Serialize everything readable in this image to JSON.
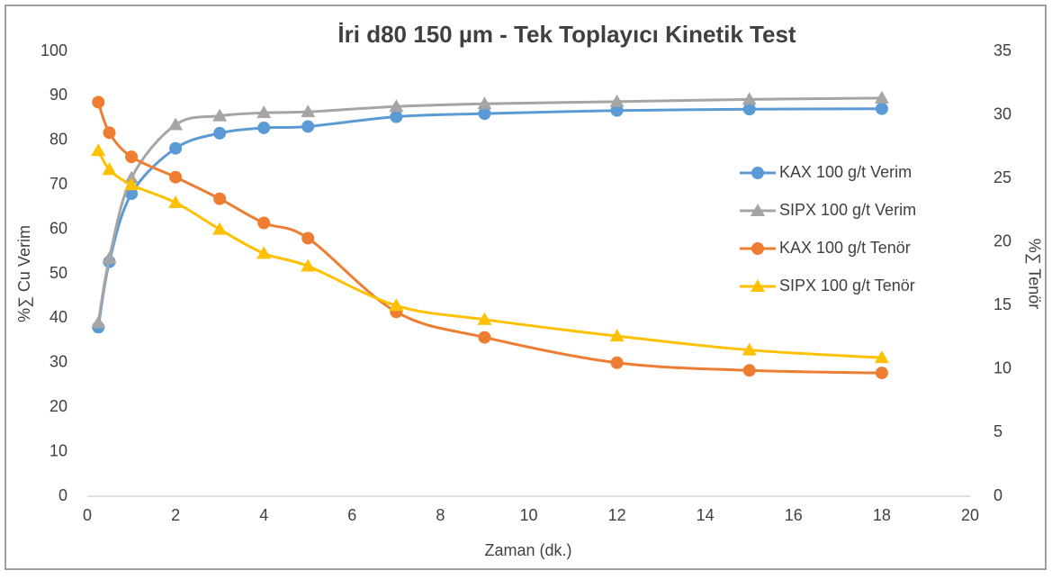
{
  "chart_data": {
    "type": "line",
    "title": "İri d80 150 µm - Tek Toplayıcı Kinetik Test",
    "x_label": "Zaman (dk.)",
    "y_label": "%∑ Cu Verim",
    "y2_label": "%∑ Tenör",
    "x": [
      0.25,
      0.5,
      1,
      2,
      3,
      4,
      5,
      7,
      9,
      12,
      15,
      18
    ],
    "xlim": [
      0,
      20
    ],
    "xticks": [
      0,
      2,
      4,
      6,
      8,
      10,
      12,
      14,
      16,
      18,
      20
    ],
    "ylim": [
      0,
      100
    ],
    "yticks": [
      0,
      10,
      20,
      30,
      40,
      50,
      60,
      70,
      80,
      90,
      100
    ],
    "y2lim": [
      0,
      35
    ],
    "y2ticks": [
      0,
      5,
      10,
      15,
      20,
      25,
      30,
      35
    ],
    "grid": false,
    "legend": "right",
    "series": [
      {
        "name": "KAX 100 g/t Verim",
        "color": "#5b9bd5",
        "marker": "circle",
        "values": [
          38,
          52.7,
          68,
          78.2,
          81.6,
          82.8,
          83.1,
          85.3,
          86.0,
          86.7,
          87.0,
          87.1
        ]
      },
      {
        "name": "SIPX 100 g/t Verim",
        "color": "#a5a5a5",
        "marker": "triangle",
        "values": [
          39,
          53.5,
          71.5,
          83.5,
          85.5,
          86.2,
          86.4,
          87.6,
          88.2,
          88.7,
          89.2,
          89.5
        ]
      },
      {
        "name": "KAX 100 g/t Tenör",
        "color": "#ed7d31",
        "marker": "circle",
        "axis": "y2",
        "values": [
          31.0,
          28.6,
          26.7,
          25.1,
          23.4,
          21.5,
          20.3,
          14.5,
          12.5,
          10.5,
          9.9,
          9.7
        ]
      },
      {
        "name": "SIPX 100 g/t Tenör",
        "color": "#ffc000",
        "marker": "triangle",
        "axis": "y2",
        "values": [
          27.2,
          25.7,
          24.5,
          23.1,
          21.0,
          19.1,
          18.1,
          15.0,
          13.9,
          12.6,
          11.5,
          10.9
        ]
      }
    ]
  }
}
